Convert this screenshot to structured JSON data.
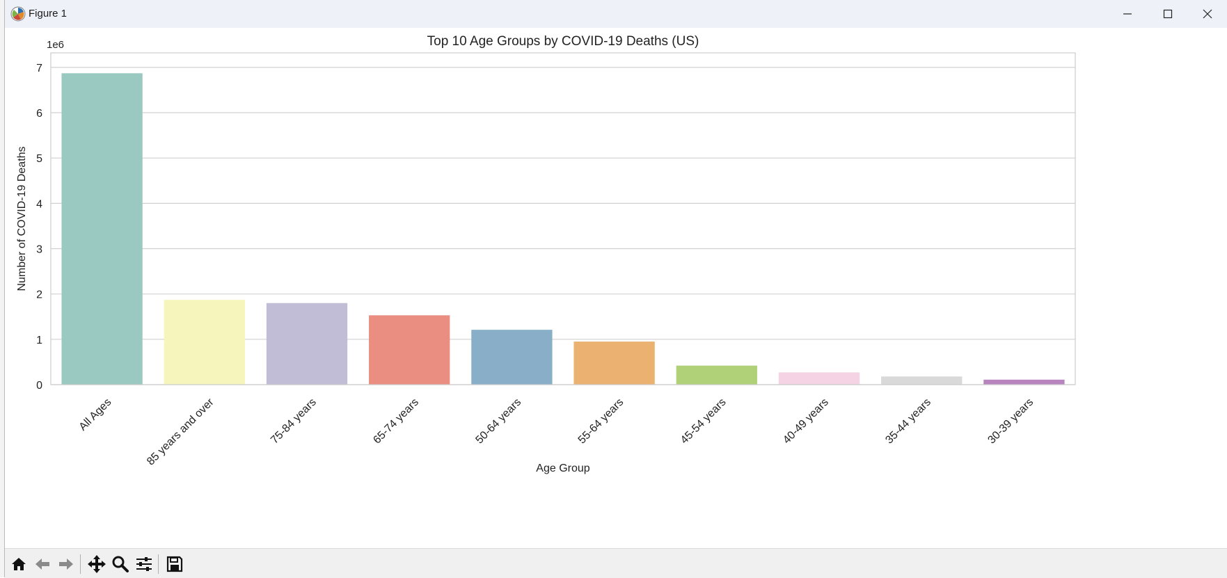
{
  "window": {
    "title": "Figure 1",
    "icon": "matplotlib-logo-icon",
    "controls": [
      "minimize-icon",
      "maximize-icon",
      "close-icon"
    ]
  },
  "toolbar": {
    "buttons": [
      "home-icon",
      "back-arrow-icon",
      "forward-arrow-icon",
      "pan-move-icon",
      "zoom-magnifier-icon",
      "configure-subplots-icon",
      "save-floppy-icon"
    ]
  },
  "chart_data": {
    "type": "bar",
    "title": "Top 10 Age Groups by COVID-19 Deaths (US)",
    "xlabel": "Age Group",
    "ylabel": "Number of COVID-19 Deaths",
    "offset_text": "1e6",
    "categories": [
      "All Ages",
      "85 years and over",
      "75-84 years",
      "65-74 years",
      "50-64 years",
      "55-64 years",
      "45-54 years",
      "40-49 years",
      "35-44 years",
      "30-39 years"
    ],
    "values": [
      6870000,
      1870000,
      1800000,
      1530000,
      1210000,
      950000,
      420000,
      270000,
      180000,
      110000
    ],
    "colors": [
      "#99c9c1",
      "#f6f5bc",
      "#c1bdd6",
      "#ea8e82",
      "#89aec8",
      "#eab170",
      "#b0d178",
      "#f5d3e5",
      "#d9d9d9",
      "#b784bd"
    ],
    "ylim": [
      0,
      7320000
    ],
    "yticks": [
      0,
      1,
      2,
      3,
      4,
      5,
      6,
      7
    ],
    "grid": true,
    "legend": "none"
  }
}
